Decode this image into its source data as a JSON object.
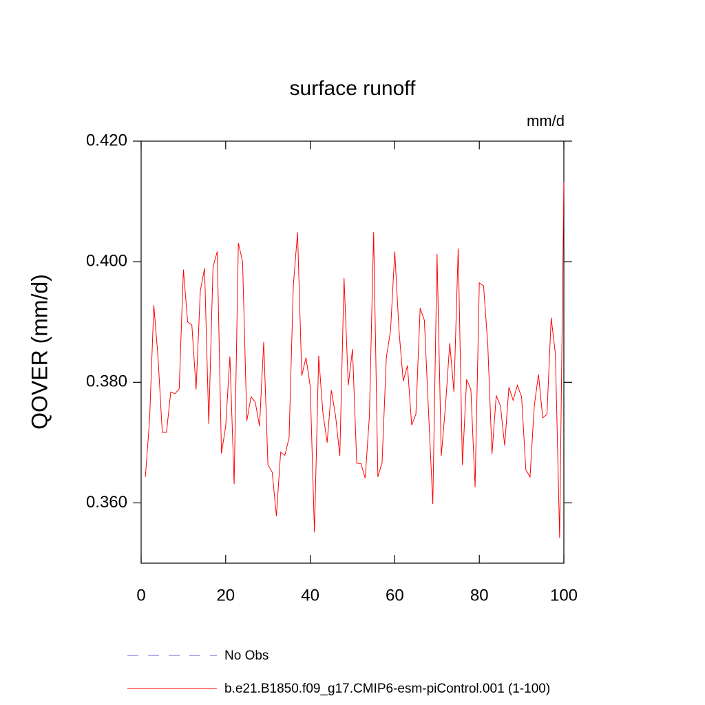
{
  "chart_data": {
    "type": "line",
    "title": "surface runoff",
    "units": "mm/d",
    "y_label": "QOVER  (mm/d)",
    "x": [
      1,
      2,
      3,
      4,
      5,
      6,
      7,
      8,
      9,
      10,
      11,
      12,
      13,
      14,
      15,
      16,
      17,
      18,
      19,
      20,
      21,
      22,
      23,
      24,
      25,
      26,
      27,
      28,
      29,
      30,
      31,
      32,
      33,
      34,
      35,
      36,
      37,
      38,
      39,
      40,
      41,
      42,
      43,
      44,
      45,
      46,
      47,
      48,
      49,
      50,
      51,
      52,
      53,
      54,
      55,
      56,
      57,
      58,
      59,
      60,
      61,
      62,
      63,
      64,
      65,
      66,
      67,
      68,
      69,
      70,
      71,
      72,
      73,
      74,
      75,
      76,
      77,
      78,
      79,
      80,
      81,
      82,
      83,
      84,
      85,
      86,
      87,
      88,
      89,
      90,
      91,
      92,
      93,
      94,
      95,
      96,
      97,
      98,
      99,
      100
    ],
    "series": [
      {
        "name": "b.e21.B1850.f09_g17.CMIP6-esm-piControl.001 (1-100)",
        "color": "#ff0000",
        "values": [
          0.3643,
          0.3738,
          0.3928,
          0.3841,
          0.3717,
          0.3717,
          0.3784,
          0.3781,
          0.3789,
          0.3987,
          0.39,
          0.3895,
          0.3788,
          0.3952,
          0.3989,
          0.3731,
          0.3991,
          0.4017,
          0.3682,
          0.3727,
          0.3843,
          0.3631,
          0.4031,
          0.4,
          0.3736,
          0.3776,
          0.3767,
          0.3727,
          0.3867,
          0.3663,
          0.3651,
          0.3578,
          0.3684,
          0.3679,
          0.3708,
          0.396,
          0.4049,
          0.3811,
          0.3841,
          0.3793,
          0.3551,
          0.3844,
          0.3749,
          0.37,
          0.3787,
          0.3744,
          0.3678,
          0.3973,
          0.3795,
          0.3855,
          0.3666,
          0.3665,
          0.3641,
          0.3744,
          0.4049,
          0.3643,
          0.3667,
          0.3841,
          0.3886,
          0.4017,
          0.3886,
          0.3802,
          0.3828,
          0.3729,
          0.3747,
          0.3923,
          0.3903,
          0.3749,
          0.3598,
          0.4013,
          0.3678,
          0.3761,
          0.3865,
          0.3784,
          0.4022,
          0.3663,
          0.3805,
          0.3788,
          0.3626,
          0.3965,
          0.396,
          0.3863,
          0.3681,
          0.3778,
          0.3761,
          0.3695,
          0.3792,
          0.377,
          0.3795,
          0.3776,
          0.3655,
          0.3643,
          0.3761,
          0.3813,
          0.3741,
          0.3747,
          0.3907,
          0.3847,
          0.3542,
          0.4132
        ]
      }
    ],
    "obs": {
      "name": "No Obs",
      "color": "#6a6ad8",
      "dash": "dashed"
    },
    "xlim": [
      0,
      100
    ],
    "xticks": [
      0,
      20,
      40,
      60,
      80,
      100
    ],
    "ylim": [
      0.35,
      0.42
    ],
    "yticks": [
      {
        "value": 0.36,
        "label": "0.360"
      },
      {
        "value": 0.38,
        "label": "0.380"
      },
      {
        "value": 0.4,
        "label": "0.400"
      },
      {
        "value": 0.42,
        "label": "0.420"
      }
    ],
    "grid": false
  }
}
